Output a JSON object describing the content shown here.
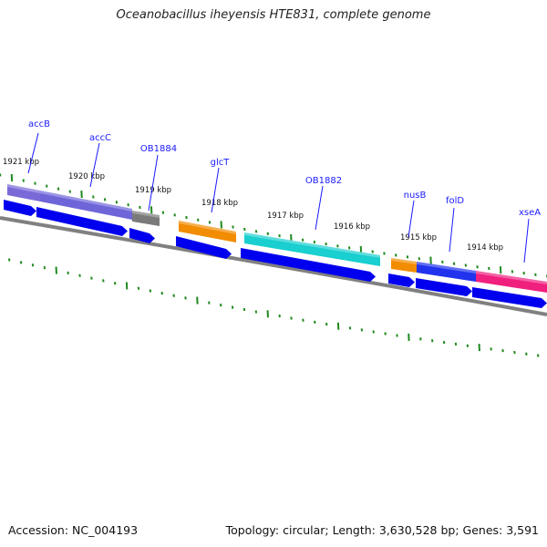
{
  "title": "Oceanobacillus iheyensis HTE831, complete genome",
  "footer": {
    "accession": "Accession: NC_004193",
    "topology": "Topology: circular; Length: 3,630,528 bp; Genes: 3,591"
  },
  "colors": {
    "background": "#ffffff",
    "backbone": "#808080",
    "tick": "#1f8a1f",
    "gene_label": "#1a1aff",
    "cds": "#0000ee",
    "accB": "#7a6ad8",
    "accC": "#6e66d8",
    "OB1884": "#7a7a7a",
    "glcT": "#f28c00",
    "OB1882": "#19cfcf",
    "nusB": "#f28c00",
    "folD": "#2233ee",
    "xseA": "#f0207f"
  },
  "genes": [
    {
      "name": "accB",
      "color_key": "accB"
    },
    {
      "name": "accC",
      "color_key": "accC"
    },
    {
      "name": "OB1884",
      "color_key": "OB1884"
    },
    {
      "name": "glcT",
      "color_key": "glcT"
    },
    {
      "name": "OB1882",
      "color_key": "OB1882"
    },
    {
      "name": "nusB",
      "color_key": "nusB"
    },
    {
      "name": "folD",
      "color_key": "folD"
    },
    {
      "name": "xseA",
      "color_key": "xseA"
    }
  ],
  "kbp_labels": [
    "1921 kbp",
    "1920 kbp",
    "1919 kbp",
    "1918 kbp",
    "1917 kbp",
    "1916 kbp",
    "1915 kbp",
    "1914 kbp"
  ]
}
